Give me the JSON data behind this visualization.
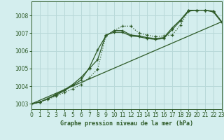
{
  "title": "Graphe pression niveau de la mer (hPa)",
  "bg_color": "#d4eeee",
  "grid_color": "#b8d8d8",
  "line_color": "#2d5a27",
  "xlim": [
    0,
    23
  ],
  "ylim": [
    1002.7,
    1008.8
  ],
  "xticks": [
    0,
    1,
    2,
    3,
    4,
    5,
    6,
    7,
    8,
    9,
    10,
    11,
    12,
    13,
    14,
    15,
    16,
    17,
    18,
    19,
    20,
    21,
    22,
    23
  ],
  "yticks": [
    1003,
    1004,
    1005,
    1006,
    1007,
    1008
  ],
  "series_dotted_x": [
    0,
    1,
    2,
    3,
    4,
    5,
    6,
    7,
    8,
    9,
    10,
    11,
    12,
    13,
    14,
    15,
    16,
    17,
    18,
    19,
    20,
    21,
    22,
    23
  ],
  "series_dotted_y": [
    1003.0,
    1003.1,
    1003.25,
    1003.45,
    1003.65,
    1003.85,
    1004.1,
    1004.5,
    1004.95,
    1006.85,
    1007.15,
    1007.4,
    1007.4,
    1007.0,
    1006.9,
    1006.8,
    1006.85,
    1006.9,
    1007.45,
    1008.3,
    1008.3,
    1008.3,
    1008.25,
    1007.65
  ],
  "series_solid1_x": [
    0,
    1,
    2,
    3,
    4,
    5,
    6,
    7,
    8,
    9,
    10,
    11,
    12,
    13,
    14,
    15,
    16,
    17,
    18,
    19,
    20,
    21,
    22,
    23
  ],
  "series_solid1_y": [
    1003.0,
    1003.1,
    1003.3,
    1003.5,
    1003.75,
    1004.05,
    1004.35,
    1005.05,
    1006.05,
    1006.85,
    1007.15,
    1007.15,
    1006.9,
    1006.85,
    1006.75,
    1006.7,
    1006.75,
    1007.3,
    1007.75,
    1008.3,
    1008.3,
    1008.3,
    1008.25,
    1007.65
  ],
  "series_solid2_x": [
    0,
    1,
    2,
    3,
    4,
    5,
    6,
    7,
    8,
    9,
    10,
    11,
    12,
    13,
    14,
    15,
    16,
    17,
    18,
    19,
    20,
    21,
    22,
    23
  ],
  "series_solid2_y": [
    1003.0,
    1003.1,
    1003.3,
    1003.55,
    1003.8,
    1004.1,
    1004.5,
    1005.0,
    1005.5,
    1006.9,
    1007.05,
    1007.05,
    1006.85,
    1006.8,
    1006.7,
    1006.65,
    1006.7,
    1007.2,
    1007.7,
    1008.25,
    1008.3,
    1008.3,
    1008.2,
    1007.6
  ],
  "ref_line_x": [
    0,
    23
  ],
  "ref_line_y": [
    1003.0,
    1007.65
  ]
}
